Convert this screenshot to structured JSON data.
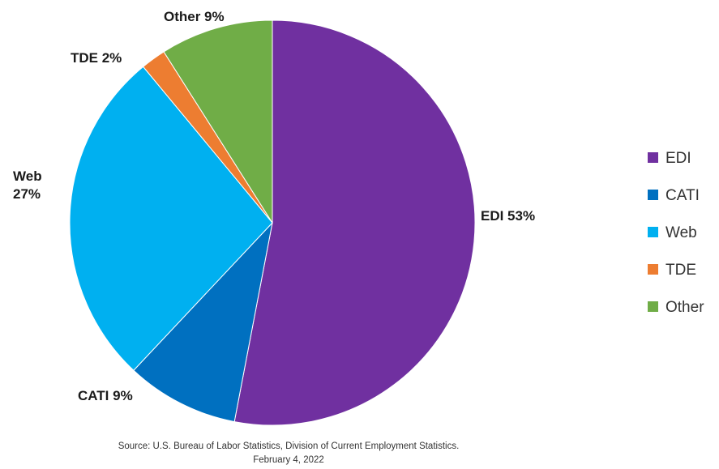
{
  "chart_data": {
    "type": "pie",
    "categories": [
      "EDI",
      "CATI",
      "Web",
      "TDE",
      "Other"
    ],
    "values": [
      53,
      9,
      27,
      2,
      9
    ],
    "colors": [
      "#7030a0",
      "#0070c0",
      "#00b0f0",
      "#ed7d31",
      "#70ad47"
    ],
    "labels": [
      {
        "lines": [
          "EDI 53%"
        ]
      },
      {
        "lines": [
          "CATI 9%"
        ]
      },
      {
        "lines": [
          "Web",
          "27%"
        ]
      },
      {
        "lines": [
          "TDE 2%"
        ]
      },
      {
        "lines": [
          "Other 9%"
        ]
      }
    ],
    "legend": {
      "position": "right",
      "entries": [
        "EDI",
        "CATI",
        "Web",
        "TDE",
        "Other"
      ]
    },
    "source": [
      "Source: U.S. Bureau of Labor Statistics, Division of Current Employment Statistics.",
      "February 4, 2022"
    ]
  }
}
